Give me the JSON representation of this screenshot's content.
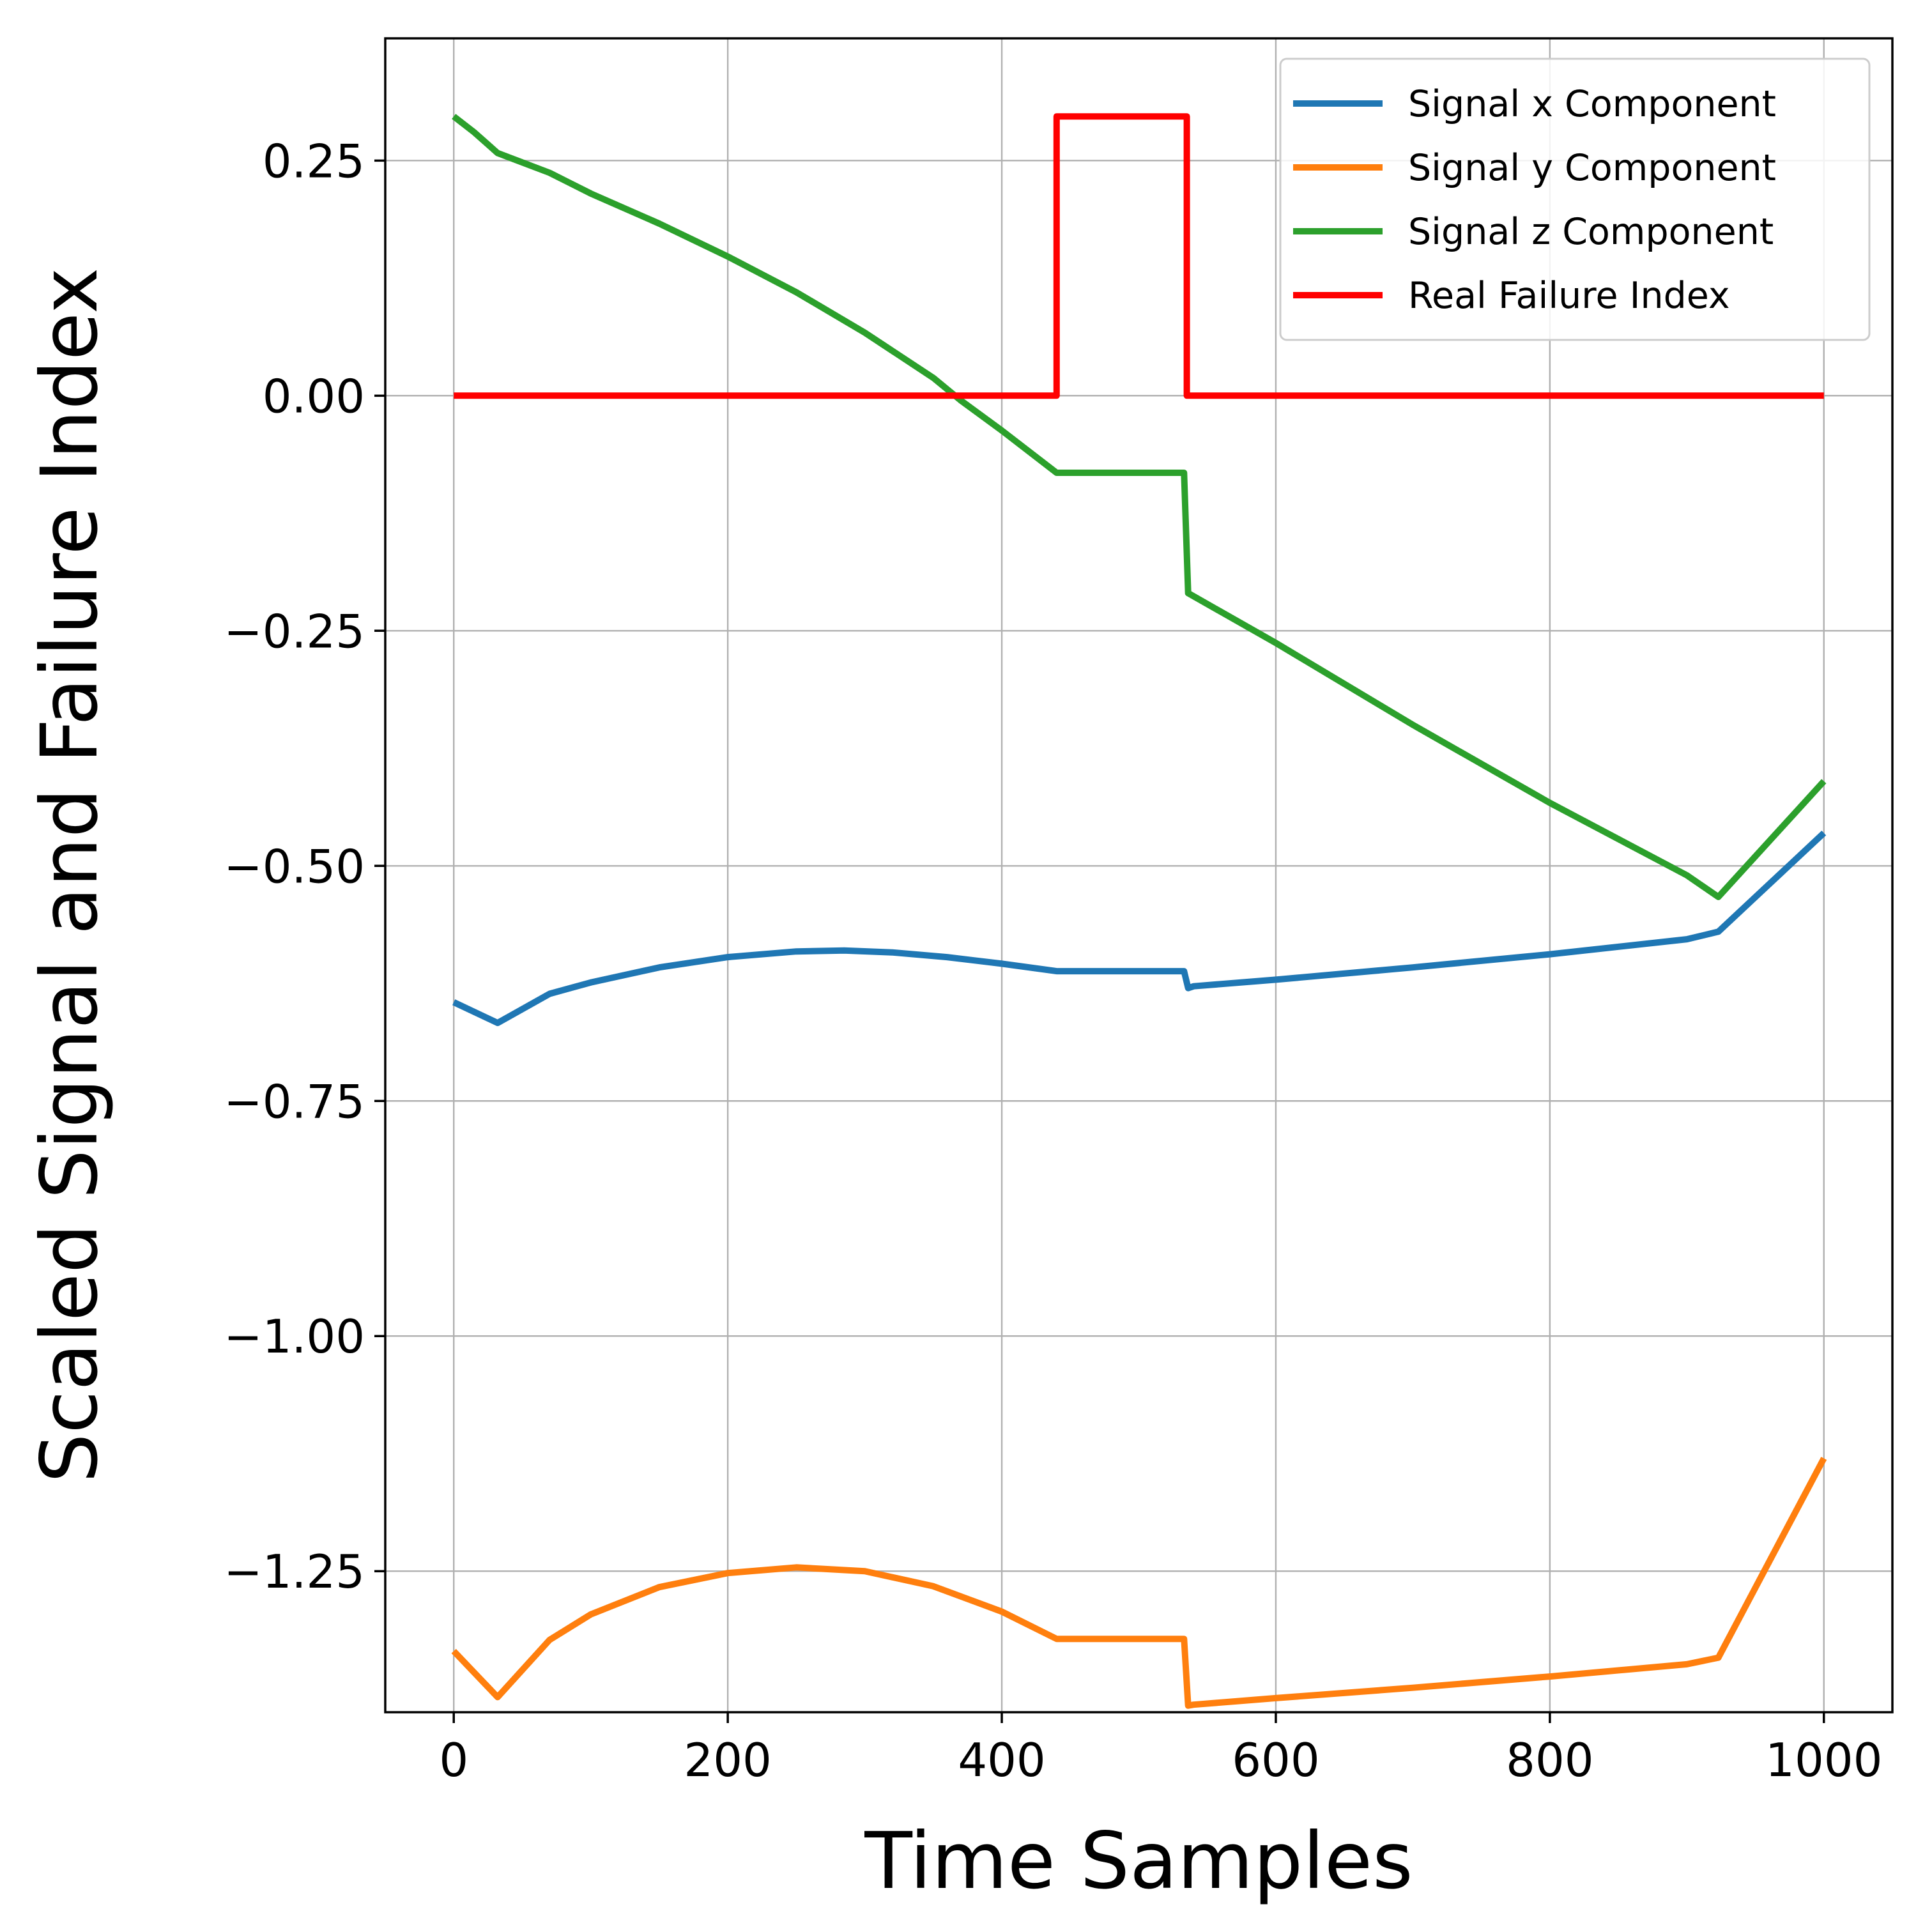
{
  "chart_data": {
    "type": "line",
    "xlabel": "Time Samples",
    "ylabel": "Scaled Signal and Failure Index",
    "xlim": [
      -50,
      1050
    ],
    "ylim": [
      -1.4,
      0.38
    ],
    "xticks": [
      0,
      200,
      400,
      600,
      800,
      1000
    ],
    "xtick_labels": [
      "0",
      "200",
      "400",
      "600",
      "800",
      "1000"
    ],
    "yticks": [
      0.25,
      0.0,
      -0.25,
      -0.5,
      -0.75,
      -1.0,
      -1.25
    ],
    "ytick_labels": [
      "0.25",
      "0.00",
      "−0.25",
      "−0.50",
      "−0.75",
      "−1.00",
      "−1.25"
    ],
    "grid": true,
    "legend_position": "top-right",
    "series": [
      {
        "name": "Signal x Component",
        "color": "#1f77b4",
        "x": [
          0,
          32,
          70,
          100,
          150,
          200,
          250,
          285,
          320,
          360,
          400,
          440,
          470,
          500,
          533,
          536,
          540,
          600,
          700,
          800,
          900,
          923,
          1000
        ],
        "y": [
          -0.645,
          -0.667,
          -0.636,
          -0.624,
          -0.608,
          -0.597,
          -0.591,
          -0.59,
          -0.592,
          -0.597,
          -0.604,
          -0.612,
          -0.612,
          -0.612,
          -0.612,
          -0.63,
          -0.628,
          -0.621,
          -0.608,
          -0.594,
          -0.578,
          -0.57,
          -0.465
        ]
      },
      {
        "name": "Signal y Component",
        "color": "#ff7f0e",
        "x": [
          0,
          32,
          70,
          100,
          150,
          200,
          250,
          300,
          350,
          400,
          440,
          470,
          500,
          533,
          536,
          540,
          600,
          700,
          800,
          900,
          923,
          1000
        ],
        "y": [
          -1.335,
          -1.384,
          -1.323,
          -1.296,
          -1.267,
          -1.252,
          -1.246,
          -1.25,
          -1.266,
          -1.293,
          -1.322,
          -1.322,
          -1.322,
          -1.322,
          -1.393,
          -1.392,
          -1.385,
          -1.374,
          -1.362,
          -1.349,
          -1.342,
          -1.13
        ]
      },
      {
        "name": "Signal z Component",
        "color": "#2ca02c",
        "x": [
          0,
          15,
          32,
          70,
          100,
          150,
          200,
          250,
          300,
          350,
          370,
          400,
          440,
          470,
          500,
          533,
          536,
          600,
          700,
          800,
          900,
          923,
          1000
        ],
        "y": [
          0.297,
          0.28,
          0.258,
          0.237,
          0.215,
          0.183,
          0.148,
          0.11,
          0.067,
          0.019,
          -0.005,
          -0.037,
          -0.082,
          -0.082,
          -0.082,
          -0.082,
          -0.21,
          -0.263,
          -0.35,
          -0.433,
          -0.51,
          -0.533,
          -0.41
        ]
      },
      {
        "name": "Real Failure Index",
        "color": "#ff0000",
        "x": [
          0,
          440,
          440,
          535,
          535,
          1000
        ],
        "y": [
          0.0,
          0.0,
          0.297,
          0.297,
          0.0,
          0.0
        ]
      }
    ]
  }
}
